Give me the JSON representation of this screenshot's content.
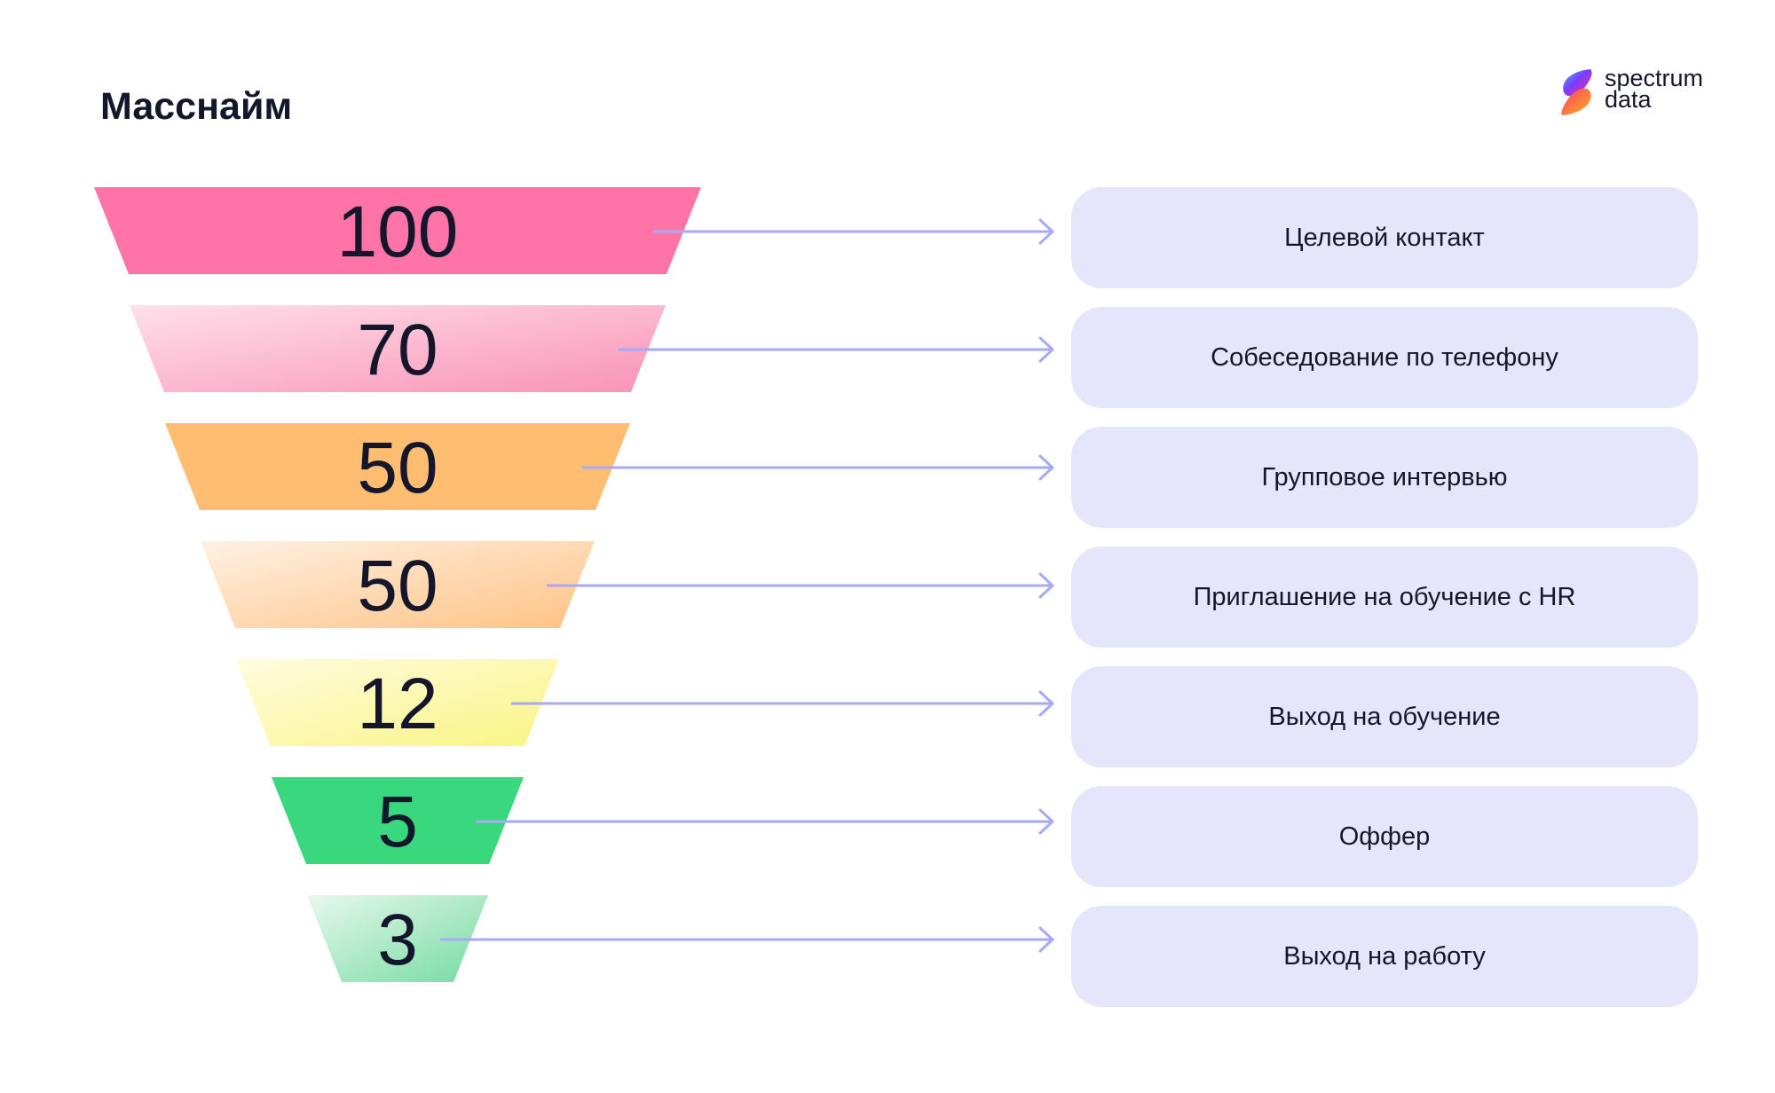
{
  "title": "Масснайм",
  "logo": {
    "line1": "spectrum",
    "line2": "data"
  },
  "stages": [
    {
      "value": "100",
      "label": "Целевой контакт",
      "color": "#ff74a6",
      "gradient_from": "#ff74a6",
      "gradient_to": "#ff74a6"
    },
    {
      "value": "70",
      "label": "Собеседование по телефону",
      "color": "#fab4cd",
      "gradient_from": "#ffe0ea",
      "gradient_to": "#f992b6"
    },
    {
      "value": "50",
      "label": "Групповое интервью",
      "color": "#ffbd72",
      "gradient_from": "#ffbd72",
      "gradient_to": "#ffbd72"
    },
    {
      "value": "50",
      "label": "Приглашение на обучение с HR",
      "color": "#ffd3a4",
      "gradient_from": "#fff1e4",
      "gradient_to": "#ffc284"
    },
    {
      "value": "12",
      "label": "Выход на обучение",
      "color": "#fbf6a0",
      "gradient_from": "#fffce0",
      "gradient_to": "#faf483"
    },
    {
      "value": "5",
      "label": "Оффер",
      "color": "#39d77e",
      "gradient_from": "#39d77e",
      "gradient_to": "#39d77e"
    },
    {
      "value": "3",
      "label": "Выход на работу",
      "color": "#b3ebc8",
      "gradient_from": "#e8f8ef",
      "gradient_to": "#74dba0"
    }
  ],
  "colors": {
    "arrow": "#a7a9f6",
    "card_background": "#e5e6fb",
    "text": "#14172b"
  }
}
